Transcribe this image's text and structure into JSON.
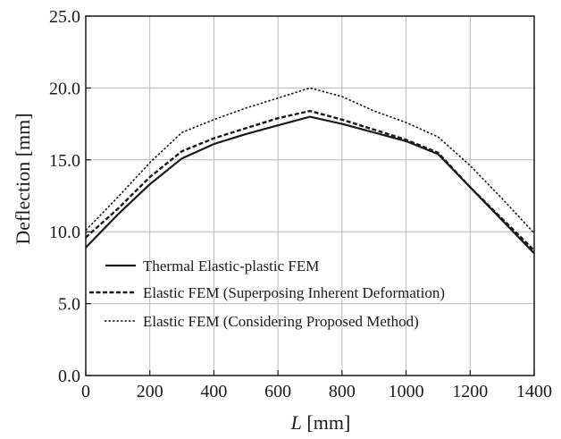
{
  "chart_data": {
    "type": "line",
    "title": "",
    "xlabel_italic": "L",
    "xlabel_unit": " [mm]",
    "ylabel": "Deflection [mm]",
    "xlim": [
      0,
      1400
    ],
    "ylim": [
      0,
      25
    ],
    "xticks": [
      0,
      200,
      400,
      600,
      800,
      1000,
      1200,
      1400
    ],
    "yticks": [
      0,
      5,
      10,
      15,
      20,
      25
    ],
    "xtick_labels": [
      "0",
      "200",
      "400",
      "600",
      "800",
      "1000",
      "1200",
      "1400"
    ],
    "ytick_labels": [
      "0.0",
      "5.0",
      "10.0",
      "15.0",
      "20.0",
      "25.0"
    ],
    "grid": true,
    "legend_position": "bottom-left",
    "series": [
      {
        "name": "Thermal Elastic-plastic FEM",
        "style": "solid",
        "color": "#1a1a1a",
        "x": [
          0,
          100,
          200,
          300,
          400,
          500,
          600,
          700,
          800,
          900,
          1000,
          1100,
          1200,
          1300,
          1400
        ],
        "y": [
          8.9,
          11.2,
          13.3,
          15.1,
          16.1,
          16.8,
          17.4,
          18.0,
          17.5,
          16.9,
          16.3,
          15.4,
          13.1,
          10.8,
          8.5
        ]
      },
      {
        "name": "Elastic FEM (Superposing Inherent Deformation)",
        "style": "dashed",
        "color": "#1a1a1a",
        "x": [
          0,
          100,
          200,
          300,
          400,
          500,
          600,
          700,
          800,
          900,
          1000,
          1100,
          1200,
          1300,
          1400
        ],
        "y": [
          9.6,
          11.6,
          13.8,
          15.6,
          16.5,
          17.2,
          17.9,
          18.4,
          17.8,
          17.1,
          16.4,
          15.5,
          13.1,
          10.9,
          8.7
        ]
      },
      {
        "name": "Elastic FEM (Considering Proposed Method)",
        "style": "dotted",
        "color": "#1a1a1a",
        "x": [
          0,
          100,
          200,
          300,
          400,
          500,
          600,
          700,
          800,
          900,
          1000,
          1100,
          1200,
          1300,
          1400
        ],
        "y": [
          10.1,
          12.4,
          14.8,
          16.9,
          17.8,
          18.6,
          19.3,
          20.0,
          19.4,
          18.4,
          17.6,
          16.6,
          14.6,
          12.3,
          9.9
        ]
      }
    ]
  }
}
